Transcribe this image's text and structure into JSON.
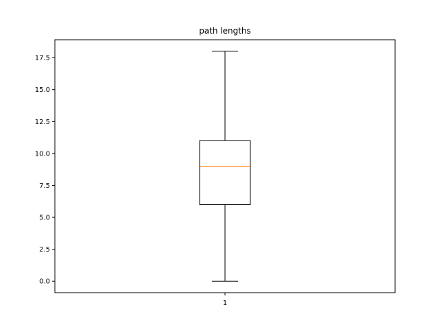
{
  "chart_data": {
    "type": "box",
    "title": "path lengths",
    "xlabel": "",
    "ylabel": "",
    "categories": [
      "1"
    ],
    "boxes": [
      {
        "label": "1",
        "whisker_low": 0.0,
        "q1": 6.0,
        "median": 9.0,
        "q3": 11.0,
        "whisker_high": 18.0
      }
    ],
    "ylim": [
      -0.9,
      18.9
    ],
    "yticks": [
      0.0,
      2.5,
      5.0,
      7.5,
      10.0,
      12.5,
      15.0,
      17.5
    ],
    "ytick_labels": [
      "0.0",
      "2.5",
      "5.0",
      "7.5",
      "10.0",
      "12.5",
      "15.0",
      "17.5"
    ],
    "grid": false,
    "colors": {
      "box": "#000000",
      "median": "#ff7f0e",
      "whisker": "#000000"
    }
  }
}
